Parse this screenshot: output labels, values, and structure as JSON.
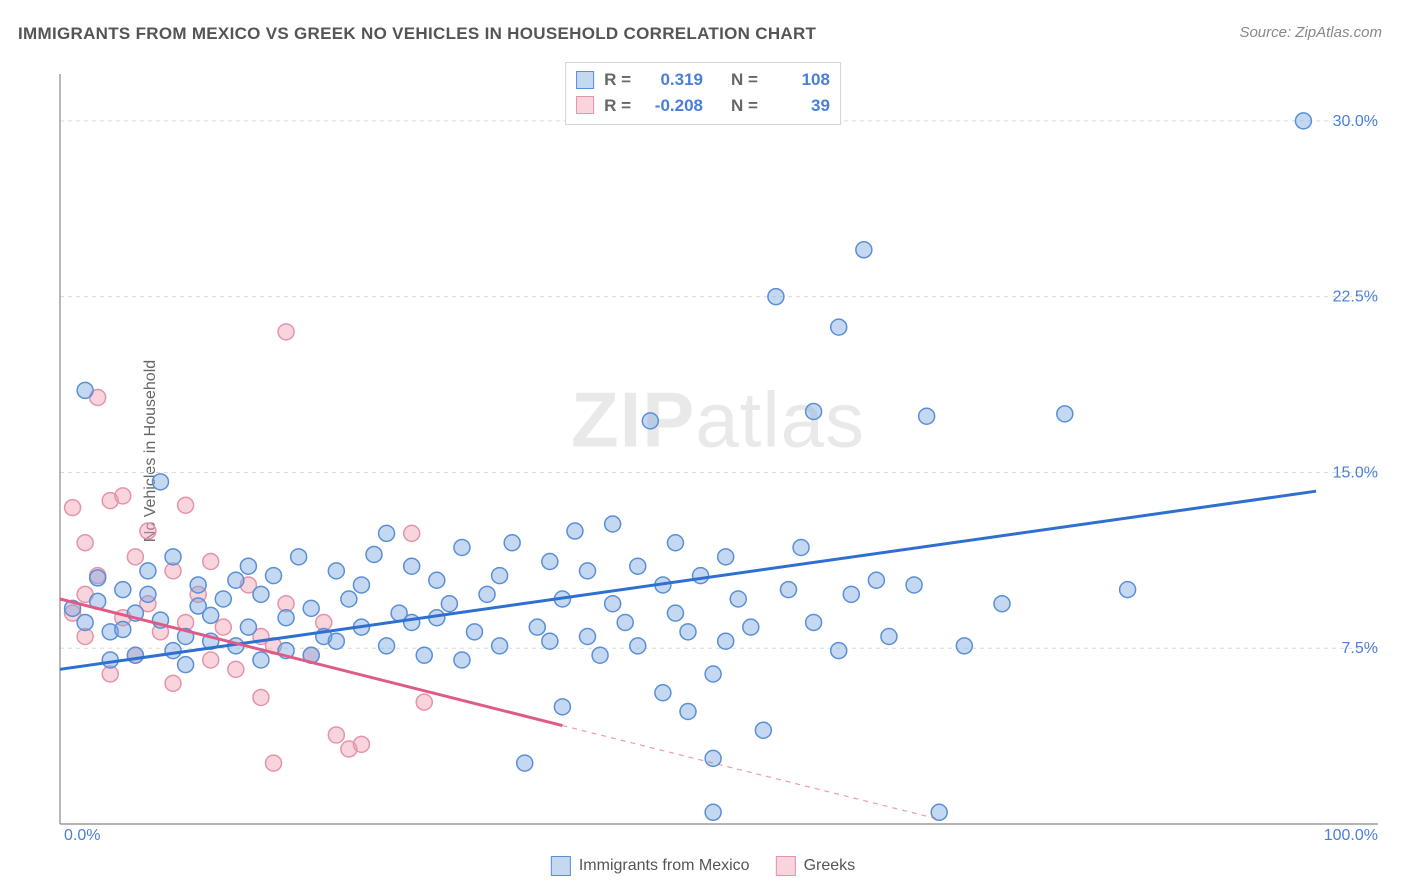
{
  "title": "IMMIGRANTS FROM MEXICO VS GREEK NO VEHICLES IN HOUSEHOLD CORRELATION CHART",
  "source": "Source: ZipAtlas.com",
  "watermark": {
    "zip": "ZIP",
    "atlas": "atlas"
  },
  "ylabel": "No Vehicles in Household",
  "chart": {
    "type": "scatter",
    "background_color": "#ffffff",
    "grid_color": "#dcdcdc",
    "axis_color": "#888888",
    "xlim": [
      0,
      100
    ],
    "ylim": [
      0,
      32
    ],
    "ygrid": [
      7.5,
      15.0,
      22.5,
      30.0
    ],
    "xticks": [
      {
        "v": 0,
        "label": "0.0%"
      },
      {
        "v": 100,
        "label": "100.0%"
      }
    ],
    "yticks": [
      {
        "v": 7.5,
        "label": "7.5%"
      },
      {
        "v": 15.0,
        "label": "15.0%"
      },
      {
        "v": 22.5,
        "label": "22.5%"
      },
      {
        "v": 30.0,
        "label": "30.0%"
      }
    ],
    "series": [
      {
        "name": "Immigrants from Mexico",
        "R": "0.319",
        "N": "108",
        "fill": "rgba(125,168,224,0.45)",
        "stroke": "#5a8fd6",
        "line_color": "#2f6fd0",
        "line": {
          "x1": 0,
          "y1": 6.6,
          "x2": 100,
          "y2": 14.2
        },
        "line_dashed": false,
        "radius": 8,
        "points": [
          [
            2,
            18.5
          ],
          [
            1,
            9.2
          ],
          [
            2,
            8.6
          ],
          [
            3,
            9.5
          ],
          [
            3,
            10.5
          ],
          [
            4,
            8.2
          ],
          [
            4,
            7.0
          ],
          [
            5,
            10.0
          ],
          [
            5,
            8.3
          ],
          [
            6,
            9.0
          ],
          [
            6,
            7.2
          ],
          [
            7,
            9.8
          ],
          [
            7,
            10.8
          ],
          [
            8,
            14.6
          ],
          [
            8,
            8.7
          ],
          [
            9,
            7.4
          ],
          [
            9,
            11.4
          ],
          [
            10,
            8.0
          ],
          [
            10,
            6.8
          ],
          [
            11,
            9.3
          ],
          [
            11,
            10.2
          ],
          [
            12,
            7.8
          ],
          [
            12,
            8.9
          ],
          [
            13,
            9.6
          ],
          [
            14,
            7.6
          ],
          [
            14,
            10.4
          ],
          [
            15,
            11.0
          ],
          [
            15,
            8.4
          ],
          [
            16,
            7.0
          ],
          [
            16,
            9.8
          ],
          [
            17,
            10.6
          ],
          [
            18,
            7.4
          ],
          [
            18,
            8.8
          ],
          [
            19,
            11.4
          ],
          [
            20,
            9.2
          ],
          [
            20,
            7.2
          ],
          [
            21,
            8.0
          ],
          [
            22,
            10.8
          ],
          [
            22,
            7.8
          ],
          [
            23,
            9.6
          ],
          [
            24,
            8.4
          ],
          [
            24,
            10.2
          ],
          [
            25,
            11.5
          ],
          [
            26,
            7.6
          ],
          [
            26,
            12.4
          ],
          [
            27,
            9.0
          ],
          [
            28,
            8.6
          ],
          [
            28,
            11.0
          ],
          [
            29,
            7.2
          ],
          [
            30,
            10.4
          ],
          [
            30,
            8.8
          ],
          [
            31,
            9.4
          ],
          [
            32,
            7.0
          ],
          [
            32,
            11.8
          ],
          [
            33,
            8.2
          ],
          [
            34,
            9.8
          ],
          [
            35,
            7.6
          ],
          [
            35,
            10.6
          ],
          [
            36,
            12.0
          ],
          [
            37,
            2.6
          ],
          [
            38,
            8.4
          ],
          [
            39,
            11.2
          ],
          [
            39,
            7.8
          ],
          [
            40,
            5.0
          ],
          [
            40,
            9.6
          ],
          [
            41,
            12.5
          ],
          [
            42,
            8.0
          ],
          [
            42,
            10.8
          ],
          [
            43,
            7.2
          ],
          [
            44,
            9.4
          ],
          [
            44,
            12.8
          ],
          [
            45,
            8.6
          ],
          [
            46,
            11.0
          ],
          [
            46,
            7.6
          ],
          [
            47,
            17.2
          ],
          [
            48,
            10.2
          ],
          [
            48,
            5.6
          ],
          [
            49,
            9.0
          ],
          [
            49,
            12.0
          ],
          [
            50,
            8.2
          ],
          [
            50,
            4.8
          ],
          [
            51,
            10.6
          ],
          [
            52,
            6.4
          ],
          [
            52,
            2.8
          ],
          [
            53,
            11.4
          ],
          [
            53,
            7.8
          ],
          [
            54,
            9.6
          ],
          [
            55,
            8.4
          ],
          [
            56,
            4.0
          ],
          [
            57,
            22.5
          ],
          [
            58,
            10.0
          ],
          [
            59,
            11.8
          ],
          [
            60,
            8.6
          ],
          [
            60,
            17.6
          ],
          [
            62,
            7.4
          ],
          [
            62,
            21.2
          ],
          [
            63,
            9.8
          ],
          [
            64,
            24.5
          ],
          [
            65,
            10.4
          ],
          [
            66,
            8.0
          ],
          [
            68,
            10.2
          ],
          [
            69,
            17.4
          ],
          [
            70,
            0.5
          ],
          [
            72,
            7.6
          ],
          [
            75,
            9.4
          ],
          [
            80,
            17.5
          ],
          [
            85,
            10.0
          ],
          [
            99,
            30.0
          ],
          [
            52,
            0.5
          ]
        ]
      },
      {
        "name": "Greeks",
        "R": "-0.208",
        "N": "39",
        "fill": "rgba(240,160,180,0.45)",
        "stroke": "#e493ab",
        "line_color": "#e05a86",
        "line": {
          "x1": 0,
          "y1": 9.6,
          "x2": 70,
          "y2": 0.2
        },
        "line_dashed_ext": {
          "x1": 40,
          "y1": 4.2,
          "x2": 70,
          "y2": 0.2
        },
        "line_dashed": true,
        "radius": 8,
        "points": [
          [
            1,
            9.0
          ],
          [
            1,
            13.5
          ],
          [
            2,
            9.8
          ],
          [
            2,
            12.0
          ],
          [
            2,
            8.0
          ],
          [
            3,
            18.2
          ],
          [
            3,
            10.6
          ],
          [
            4,
            6.4
          ],
          [
            4,
            13.8
          ],
          [
            5,
            8.8
          ],
          [
            5,
            14.0
          ],
          [
            6,
            11.4
          ],
          [
            6,
            7.2
          ],
          [
            7,
            9.4
          ],
          [
            7,
            12.5
          ],
          [
            8,
            8.2
          ],
          [
            9,
            10.8
          ],
          [
            9,
            6.0
          ],
          [
            10,
            13.6
          ],
          [
            10,
            8.6
          ],
          [
            11,
            9.8
          ],
          [
            12,
            7.0
          ],
          [
            12,
            11.2
          ],
          [
            13,
            8.4
          ],
          [
            14,
            6.6
          ],
          [
            15,
            10.2
          ],
          [
            16,
            8.0
          ],
          [
            16,
            5.4
          ],
          [
            17,
            7.6
          ],
          [
            17,
            2.6
          ],
          [
            18,
            9.4
          ],
          [
            18,
            21.0
          ],
          [
            20,
            7.2
          ],
          [
            21,
            8.6
          ],
          [
            22,
            3.8
          ],
          [
            23,
            3.2
          ],
          [
            24,
            3.4
          ],
          [
            28,
            12.4
          ],
          [
            29,
            5.2
          ]
        ]
      }
    ]
  },
  "legend": {
    "series1": "Immigrants from Mexico",
    "series2": "Greeks"
  }
}
